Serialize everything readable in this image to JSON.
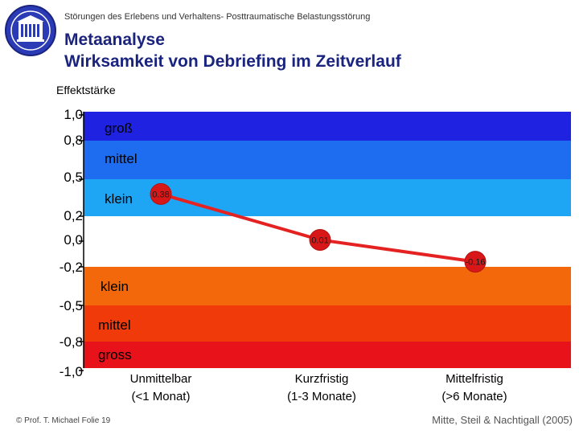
{
  "header": {
    "subtitle": "Störungen des Erlebens und Verhaltens- Posttraumatische Belastungsstörung",
    "title_line1": "Metaanalyse",
    "title_line2": "Wirksamkeit von Debriefing im Zeitverlauf"
  },
  "footer": {
    "left": "© Prof. T. Michael Folie 19",
    "right": "Mitte, Steil & Nachtigall (2005)"
  },
  "colors": {
    "band_gross_pos": "#1f22e0",
    "band_mittel_pos": "#1e6cf0",
    "band_klein_pos": "#1ea6f5",
    "band_neutral": "#ffffff",
    "band_klein_neg": "#f2680a",
    "band_mittel_neg": "#f03a0a",
    "band_gross_neg": "#e8121a",
    "line": "#e52222",
    "marker": "#d81818"
  },
  "chart_data": {
    "type": "line",
    "ylabel": "Effektstärke",
    "y_ticks": [
      "1,0",
      "0,8",
      "0,5",
      "0,2",
      "0,0",
      "-0,2",
      "-0,5",
      "-0,8",
      "-1,0"
    ],
    "bands": [
      {
        "label": "groß",
        "sign": "positive"
      },
      {
        "label": "mittel",
        "sign": "positive"
      },
      {
        "label": "klein",
        "sign": "positive"
      },
      {
        "label": "klein",
        "sign": "negative"
      },
      {
        "label": "mittel",
        "sign": "negative"
      },
      {
        "label": "gross",
        "sign": "negative"
      }
    ],
    "categories": [
      [
        "Unmittelbar",
        "(<1 Monat)"
      ],
      [
        "Kurzfristig",
        "(1-3 Monate)"
      ],
      [
        "Mittelfristig",
        "(>6 Monate)"
      ]
    ],
    "values": [
      0.38,
      0.01,
      -0.16
    ],
    "data_labels": [
      "0.38",
      "0.01",
      "-0.16"
    ]
  }
}
